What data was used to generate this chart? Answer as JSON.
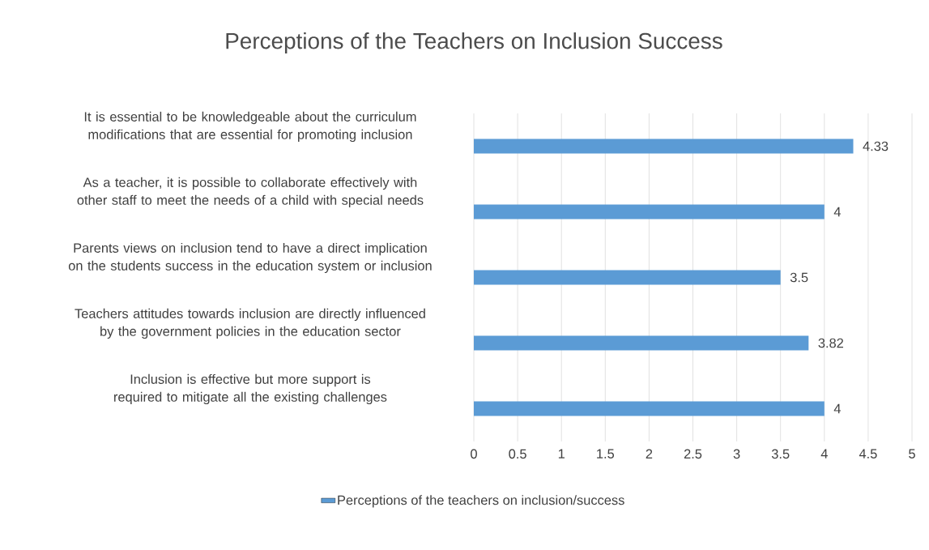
{
  "chart_data": {
    "type": "bar",
    "orientation": "horizontal",
    "title": "Perceptions of the Teachers on Inclusion Success",
    "categories": [
      "It is essential to be knowledgeable about the curriculum modifications that are essential for promoting inclusion",
      "As a teacher, it is possible to collaborate effectively with other staff to meet the needs of a child with special needs",
      "Parents views on inclusion tend to have a direct implication on the students success in the education system or inclusion",
      "Teachers attitudes towards inclusion are directly influenced by the government policies in the education sector",
      "Inclusion is effective but more support is required to mitigate all the existing challenges"
    ],
    "series": [
      {
        "name": "Perceptions of the teachers on inclusion/success",
        "color": "#5b9bd5",
        "values": [
          4.33,
          4,
          3.5,
          3.82,
          4
        ]
      }
    ],
    "xlim": [
      0,
      5
    ],
    "xticks": [
      0,
      0.5,
      1,
      1.5,
      2,
      2.5,
      3,
      3.5,
      4,
      4.5,
      5
    ],
    "grid": "x",
    "legend": "bottom",
    "data_labels": true
  }
}
